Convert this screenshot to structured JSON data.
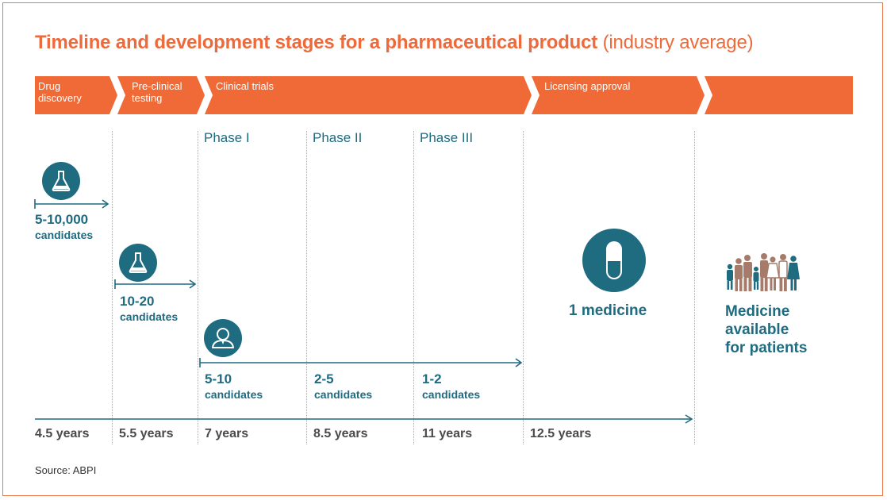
{
  "title": {
    "main": "Timeline and development stages for a pharmaceutical product",
    "sub": "(industry average)"
  },
  "stages": [
    {
      "line1": "Drug",
      "line2": "discovery"
    },
    {
      "line1": "Pre-clinical",
      "line2": "testing"
    },
    {
      "line1": "Clinical trials",
      "line2": ""
    },
    {
      "line1": "Licensing approval",
      "line2": ""
    }
  ],
  "phases": [
    "Phase I",
    "Phase II",
    "Phase III"
  ],
  "candidates": [
    {
      "number": "5-10,000",
      "unit": "candidates"
    },
    {
      "number": "10-20",
      "unit": "candidates"
    },
    {
      "number": "5-10",
      "unit": "candidates"
    },
    {
      "number": "2-5",
      "unit": "candidates"
    },
    {
      "number": "1-2",
      "unit": "candidates"
    }
  ],
  "medicine": "1 medicine",
  "available": {
    "line1": "Medicine",
    "line2": "available",
    "line3": "for patients"
  },
  "years": [
    "4.5 years",
    "5.5 years",
    "7 years",
    "8.5 years",
    "11 years",
    "12.5 years"
  ],
  "source": "Source: ABPI",
  "colors": {
    "orange": "#ef6a36",
    "teal": "#1f6b80",
    "grey_text": "#4a4a4a"
  },
  "icons": [
    "flask-icon",
    "flask-icon",
    "person-icon",
    "pill-icon",
    "people-icon"
  ]
}
